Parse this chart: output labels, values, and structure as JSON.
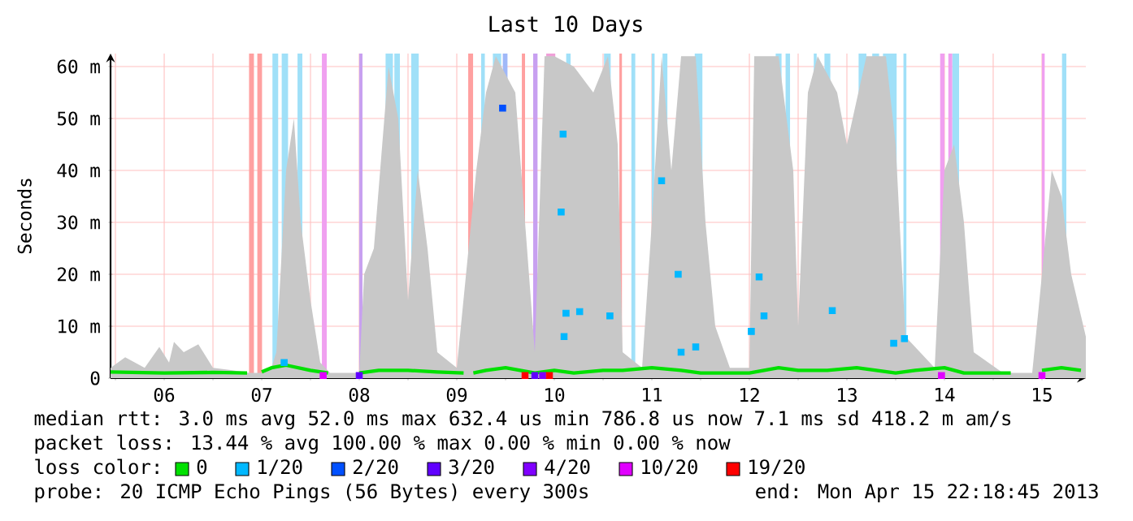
{
  "chart_data": {
    "type": "line",
    "title": "Last 10 Days",
    "ylabel": "Seconds",
    "legend_title": "loss color:",
    "legend": "bottom",
    "grid": true,
    "xlim": [
      5.95,
      15.95
    ],
    "ylim": [
      0,
      62.5
    ],
    "xticks": [
      {
        "value": 6,
        "label": null
      },
      {
        "value": 6.5,
        "label": "06"
      },
      {
        "value": 7,
        "label": null
      },
      {
        "value": 7.5,
        "label": "07"
      },
      {
        "value": 8,
        "label": null
      },
      {
        "value": 8.5,
        "label": "08"
      },
      {
        "value": 9,
        "label": null
      },
      {
        "value": 9.5,
        "label": "09"
      },
      {
        "value": 10,
        "label": null
      },
      {
        "value": 10.5,
        "label": "10"
      },
      {
        "value": 11,
        "label": null
      },
      {
        "value": 11.5,
        "label": "11"
      },
      {
        "value": 12,
        "label": null
      },
      {
        "value": 12.5,
        "label": "12"
      },
      {
        "value": 13,
        "label": null
      },
      {
        "value": 13.5,
        "label": "13"
      },
      {
        "value": 14,
        "label": null
      },
      {
        "value": 14.5,
        "label": "14"
      },
      {
        "value": 15,
        "label": null
      },
      {
        "value": 15.5,
        "label": "15"
      }
    ],
    "yticks": [
      0,
      {
        "value": 10,
        "label": "10 m"
      },
      {
        "value": 20,
        "label": "20 m"
      },
      {
        "value": 30,
        "label": "30 m"
      },
      {
        "value": 40,
        "label": "40 m"
      },
      {
        "value": 50,
        "label": "50 m"
      },
      {
        "value": 60,
        "label": "60 m"
      }
    ],
    "bands": [
      {
        "axis": "x",
        "from": 7.37,
        "to": 7.42,
        "color": "#ffa0a0"
      },
      {
        "axis": "x",
        "from": 7.455,
        "to": 7.5,
        "color": "#ffa0a0"
      },
      {
        "axis": "x",
        "from": 9.617,
        "to": 9.667,
        "color": "#ffa0a0"
      },
      {
        "axis": "x",
        "from": 10.167,
        "to": 10.2,
        "color": "#ffa0a0"
      },
      {
        "axis": "x",
        "from": 10.417,
        "to": 10.51,
        "color": "#f0a0d8"
      },
      {
        "axis": "x",
        "from": 11.167,
        "to": 11.195,
        "color": "#ffa0a0"
      },
      {
        "axis": "x",
        "from": 7.61,
        "to": 7.67,
        "color": "#a0e0f8"
      },
      {
        "axis": "x",
        "from": 7.705,
        "to": 7.77,
        "color": "#a0e0f8"
      },
      {
        "axis": "x",
        "from": 7.867,
        "to": 7.917,
        "color": "#a0e0f8"
      },
      {
        "axis": "x",
        "from": 8.77,
        "to": 8.845,
        "color": "#a0e0f8"
      },
      {
        "axis": "x",
        "from": 8.86,
        "to": 8.917,
        "color": "#a0e0f8"
      },
      {
        "axis": "x",
        "from": 9.033,
        "to": 9.11,
        "color": "#a0e0f8"
      },
      {
        "axis": "x",
        "from": 9.75,
        "to": 9.788,
        "color": "#a0e0f8"
      },
      {
        "axis": "x",
        "from": 9.87,
        "to": 9.955,
        "color": "#a0e0f8"
      },
      {
        "axis": "x",
        "from": 9.97,
        "to": 10.02,
        "color": "#a0b8f8"
      },
      {
        "axis": "x",
        "from": 10.622,
        "to": 10.667,
        "color": "#a0e0f8"
      },
      {
        "axis": "x",
        "from": 11.01,
        "to": 11.078,
        "color": "#a0e0f8"
      },
      {
        "axis": "x",
        "from": 11.29,
        "to": 11.33,
        "color": "#a0e0f8"
      },
      {
        "axis": "x",
        "from": 11.5,
        "to": 11.53,
        "color": "#a0e0f8"
      },
      {
        "axis": "x",
        "from": 11.61,
        "to": 11.66,
        "color": "#a0e0f8"
      },
      {
        "axis": "x",
        "from": 11.94,
        "to": 12.02,
        "color": "#a0e0f8"
      },
      {
        "axis": "x",
        "from": 12.77,
        "to": 12.83,
        "color": "#a0e0f8"
      },
      {
        "axis": "x",
        "from": 12.87,
        "to": 12.917,
        "color": "#a0e0f8"
      },
      {
        "axis": "x",
        "from": 13.16,
        "to": 13.19,
        "color": "#a0e0f8"
      },
      {
        "axis": "x",
        "from": 13.27,
        "to": 13.33,
        "color": "#a0e0f8"
      },
      {
        "axis": "x",
        "from": 13.62,
        "to": 13.7,
        "color": "#a0e0f8"
      },
      {
        "axis": "x",
        "from": 13.76,
        "to": 13.83,
        "color": "#a0e0f8"
      },
      {
        "axis": "x",
        "from": 13.87,
        "to": 14.01,
        "color": "#a0e0f8"
      },
      {
        "axis": "x",
        "from": 14.08,
        "to": 14.11,
        "color": "#a0e0f8"
      },
      {
        "axis": "x",
        "from": 14.58,
        "to": 14.65,
        "color": "#a0e0f8"
      },
      {
        "axis": "x",
        "from": 15.705,
        "to": 15.75,
        "color": "#a0e0f8"
      },
      {
        "axis": "x",
        "from": 8.5,
        "to": 8.533,
        "color": "#c8a0f0"
      },
      {
        "axis": "x",
        "from": 10.283,
        "to": 10.328,
        "color": "#c8a0f0"
      },
      {
        "axis": "x",
        "from": 8.117,
        "to": 8.167,
        "color": "#f0a0f0"
      },
      {
        "axis": "x",
        "from": 14.455,
        "to": 14.5,
        "color": "#f0a0f0"
      },
      {
        "axis": "x",
        "from": 14.54,
        "to": 14.58,
        "color": "#f0a0f0"
      },
      {
        "axis": "x",
        "from": 15.5,
        "to": 15.528,
        "color": "#f0a0f0"
      }
    ],
    "series": [
      {
        "type": "area",
        "color": "#c8c8c8",
        "x": [
          5.95,
          6.1,
          6.3,
          6.45,
          6.55,
          6.6,
          6.7,
          6.85,
          7.0,
          7.2,
          7.37,
          7.5,
          7.6,
          7.65,
          7.75,
          7.83,
          7.9,
          8.0,
          8.1,
          8.2,
          8.5,
          8.55,
          8.65,
          8.8,
          8.9,
          9.0,
          9.1,
          9.2,
          9.3,
          9.5,
          9.7,
          9.8,
          9.9,
          10.1,
          10.2,
          10.3,
          10.4,
          10.5,
          10.7,
          10.9,
          11.05,
          11.15,
          11.2,
          11.4,
          11.5,
          11.6,
          11.7,
          11.8,
          11.95,
          12.05,
          12.15,
          12.3,
          12.5,
          12.55,
          12.8,
          12.95,
          13.0,
          13.1,
          13.2,
          13.4,
          13.5,
          13.7,
          13.9,
          14.0,
          14.1,
          14.4,
          14.5,
          14.6,
          14.7,
          14.8,
          15.1,
          15.4,
          15.5,
          15.6,
          15.7,
          15.8,
          15.95
        ],
        "values": [
          2,
          4,
          2,
          6,
          3,
          7,
          5,
          6.5,
          2,
          1.5,
          1,
          1,
          2,
          5,
          40,
          50,
          30,
          15,
          3,
          1,
          1,
          20,
          25,
          60,
          50,
          15,
          40,
          25,
          5,
          2,
          40,
          55,
          62,
          55,
          30,
          5,
          62,
          62,
          60,
          55,
          62,
          45,
          5,
          2,
          30,
          62,
          40,
          62,
          62,
          30,
          10,
          2,
          2,
          62,
          62,
          40,
          10,
          55,
          62,
          55,
          45,
          62,
          62,
          45,
          8,
          2,
          40,
          45,
          30,
          5,
          1,
          1,
          20,
          40,
          35,
          20,
          8
        ]
      },
      {
        "name": "0",
        "color": "#00e000",
        "x": [
          5.95,
          6.5,
          7.0,
          7.35,
          7.42,
          7.5,
          7.6,
          7.75,
          8.0,
          8.18,
          8.3,
          8.5,
          8.7,
          9.0,
          9.3,
          9.57,
          9.62,
          9.67,
          9.8,
          10.0,
          10.3,
          10.5,
          10.7,
          11.0,
          11.2,
          11.5,
          11.8,
          12.0,
          12.2,
          12.5,
          12.8,
          13.0,
          13.3,
          13.6,
          13.8,
          14.0,
          14.2,
          14.5,
          14.7,
          15.0,
          15.18,
          15.3,
          15.5,
          15.7,
          15.9
        ],
        "values": [
          1.2,
          1.0,
          1.1,
          1.0,
          null,
          1.2,
          2.0,
          2.5,
          1.5,
          1.0,
          null,
          1.0,
          1.5,
          1.5,
          1.2,
          1.0,
          null,
          1.0,
          1.5,
          2.0,
          1.0,
          1.5,
          1.0,
          1.5,
          1.5,
          2.0,
          1.5,
          1.0,
          1.0,
          1.0,
          2.0,
          1.5,
          1.5,
          2.0,
          1.5,
          1.0,
          1.5,
          2.0,
          1.0,
          1.0,
          1.0,
          null,
          1.5,
          2.0,
          1.5
        ]
      },
      {
        "name": "1/20",
        "type": "scatter",
        "marker": "square",
        "color": "#00b8ff",
        "x": [
          7.73,
          10.57,
          10.59,
          10.6,
          10.62,
          10.76,
          11.07,
          11.6,
          11.77,
          11.8,
          11.95,
          12.52,
          12.6,
          12.65,
          13.35,
          13.98,
          14.09
        ],
        "values": [
          3,
          32,
          47,
          8,
          12.5,
          12.8,
          12,
          38,
          20,
          5,
          6,
          9,
          19.5,
          12,
          13,
          6.7,
          7.6
        ]
      },
      {
        "name": "2/20",
        "type": "scatter",
        "marker": "square",
        "color": "#0050ff",
        "x": [
          9.97
        ],
        "values": [
          52
        ]
      },
      {
        "name": "3/20",
        "type": "scatter",
        "marker": "square",
        "color": "#6000ff",
        "x": [
          8.5,
          10.3
        ],
        "values": [
          0.5,
          0.5
        ]
      },
      {
        "name": "4/20",
        "type": "scatter",
        "marker": "square",
        "color": "#8000ff",
        "x": [
          10.38
        ],
        "values": [
          0.5
        ]
      },
      {
        "name": "10/20",
        "type": "scatter",
        "marker": "square",
        "color": "#e000ff",
        "x": [
          8.13,
          14.47,
          15.5
        ],
        "values": [
          0.5,
          0.5,
          0.5
        ]
      },
      {
        "name": "19/20",
        "type": "scatter",
        "marker": "square",
        "color": "#ff0000",
        "x": [
          10.2,
          10.45
        ],
        "values": [
          0.5,
          0.5
        ]
      }
    ],
    "annotations": [
      "median rtt: 3.0 ms avg 52.0 ms max 632.4 us min 786.8 us now 7.1 ms sd 418.2 m am/s",
      "packet loss: 13.44 % avg 100.00 % max 0.00 % min 0.00 % now",
      "probe: 20 ICMP Echo Pings (56 Bytes) every 300s",
      "end: Mon Apr 15 22:18:45 2013"
    ]
  }
}
